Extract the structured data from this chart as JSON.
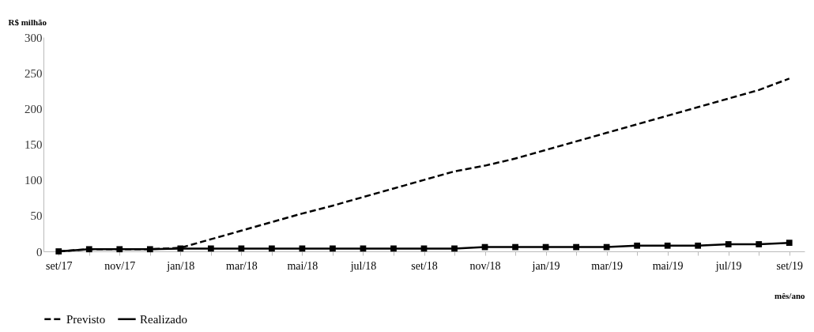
{
  "chart_data": {
    "type": "line",
    "xlabel": "mês/ano",
    "ylabel": "R$ milhão",
    "categories": [
      "set/17",
      null,
      "nov/17",
      null,
      "jan/18",
      null,
      "mar/18",
      null,
      "mai/18",
      null,
      "jul/18",
      null,
      "set/18",
      null,
      "nov/18",
      null,
      "jan/19",
      null,
      "mar/19",
      null,
      "mai/19",
      null,
      "jul/19",
      null,
      "set/19"
    ],
    "series": [
      {
        "name": "Previsto",
        "color": "#000000",
        "line_style": "dashed",
        "marker": "none",
        "values": [
          0,
          3,
          3,
          3,
          5,
          17,
          29,
          41,
          53,
          64,
          76,
          88,
          100,
          112,
          120,
          130,
          142,
          154,
          166,
          178,
          190,
          202,
          214,
          226,
          242
        ]
      },
      {
        "name": "Realizado",
        "color": "#000000",
        "line_style": "solid",
        "marker": "square",
        "values": [
          0,
          3,
          3,
          3,
          4,
          4,
          4,
          4,
          4,
          4,
          4,
          4,
          4,
          4,
          6,
          6,
          6,
          6,
          6,
          8,
          8,
          8,
          10,
          10,
          12
        ]
      }
    ],
    "ylim": [
      0,
      300
    ],
    "yticks": [
      0,
      50,
      100,
      150,
      200,
      250,
      300
    ],
    "grid": false,
    "legend": "bottom"
  }
}
